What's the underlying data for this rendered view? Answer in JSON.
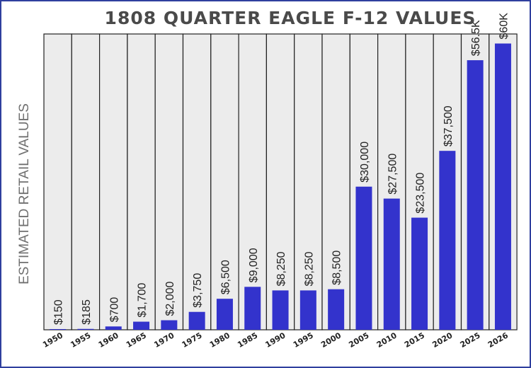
{
  "chart_data": {
    "type": "bar",
    "title": "1808 QUARTER EAGLE F-12 VALUES",
    "ylabel": "ESTIMATED RETAIL VALUES",
    "xlabel": "",
    "categories": [
      "1950",
      "1955",
      "1960",
      "1965",
      "1970",
      "1975",
      "1980",
      "1985",
      "1990",
      "1995",
      "2000",
      "2005",
      "2010",
      "2015",
      "2020",
      "2025",
      "2026"
    ],
    "values": [
      150,
      185,
      700,
      1700,
      2000,
      3750,
      6500,
      9000,
      8250,
      8250,
      8500,
      30000,
      27500,
      23500,
      37500,
      56500,
      60000
    ],
    "value_labels": [
      "$150",
      "$185",
      "$700",
      "$1,700",
      "$2,000",
      "$3,750",
      "$6,500",
      "$9,000",
      "$8,250",
      "$8,250",
      "$8,500",
      "$30,000",
      "$27,500",
      "$23,500",
      "$37,500",
      "$56.5K",
      "$60K"
    ],
    "ylim": [
      0,
      62000
    ],
    "grid": false,
    "bar_color": "#3333cc",
    "column_background": "#ececec",
    "column_border": "#222222"
  }
}
